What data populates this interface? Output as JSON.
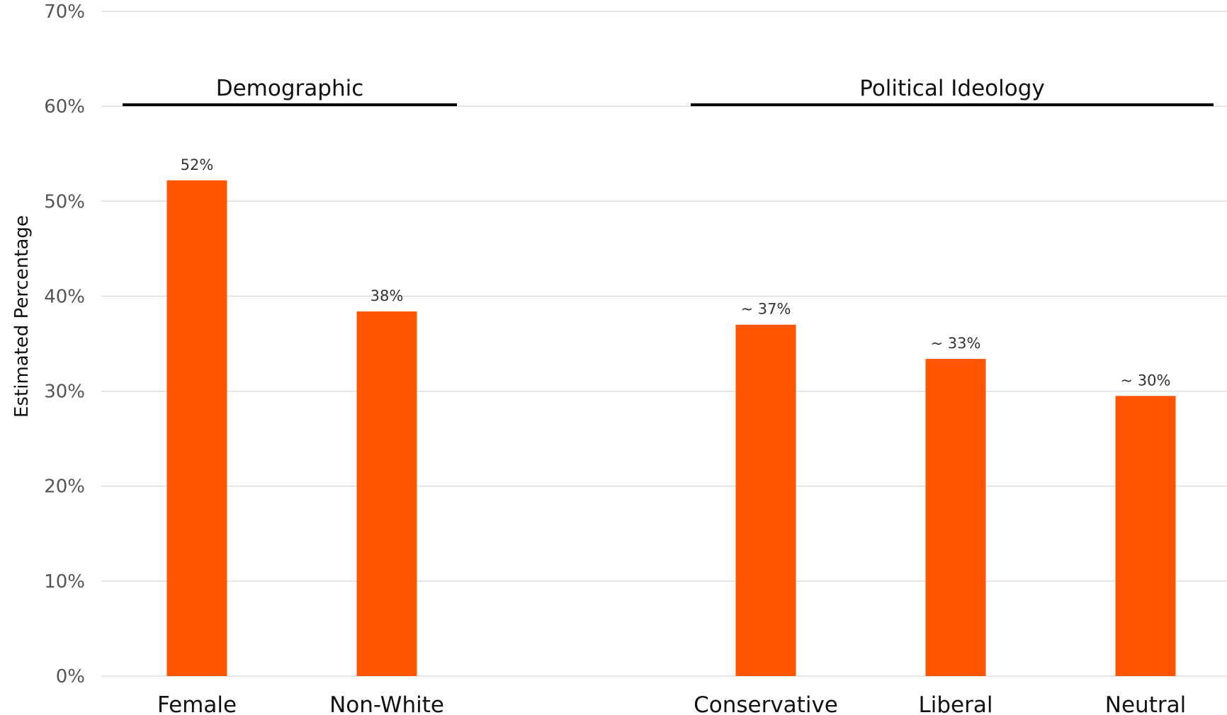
{
  "chart_data": {
    "type": "bar",
    "title": "",
    "xlabel": "",
    "ylabel": "Estimated Percentage",
    "ylim": [
      0,
      70
    ],
    "yticks": [
      0,
      10,
      20,
      30,
      40,
      50,
      60,
      70
    ],
    "ytick_labels": [
      "0%",
      "10%",
      "20%",
      "30%",
      "40%",
      "50%",
      "60%",
      "70%"
    ],
    "grid": true,
    "legend": "none",
    "bar_color": "#ff5500",
    "groups": [
      {
        "name": "Demographic",
        "categories": [
          "Female",
          "Non-White"
        ]
      },
      {
        "name": "Political Ideology",
        "categories": [
          "Conservative",
          "Liberal",
          "Neutral"
        ]
      }
    ],
    "categories": [
      "Female",
      "Non-White",
      "Conservative",
      "Liberal",
      "Neutral"
    ],
    "values": [
      52.2,
      38.4,
      37,
      33.4,
      29.5
    ],
    "data_labels": [
      "52%",
      "38%",
      "~ 37%",
      "~ 33%",
      "~ 30%"
    ]
  }
}
